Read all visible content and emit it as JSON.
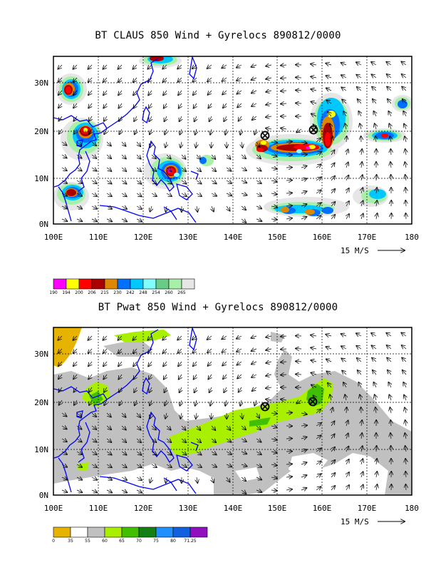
{
  "panels": [
    {
      "title": "BT CLAUS 850 Wind + Gyrelocs 890812/0000",
      "x_ticks": [
        "100E",
        "110E",
        "120E",
        "130E",
        "140E",
        "150E",
        "160E",
        "170E",
        "180"
      ],
      "y_ticks": [
        "0N",
        "10N",
        "20N",
        "30N"
      ],
      "vector_ref_label": "15 M/S",
      "colorbar_labels": [
        "190",
        "194",
        "200",
        "206",
        "215",
        "230",
        "242",
        "248",
        "254",
        "260",
        "265"
      ],
      "colorbar_colors": [
        "#ff00ff",
        "#ffff00",
        "#ff0000",
        "#aa0000",
        "#dd8800",
        "#0070ff",
        "#00c8ff",
        "#80ffff",
        "#66cc88",
        "#a8f0a8",
        "#e6e6e6"
      ]
    },
    {
      "title": "BT Pwat 850 Wind + Gyrelocs 890812/0000",
      "x_ticks": [
        "100E",
        "110E",
        "120E",
        "130E",
        "140E",
        "150E",
        "160E",
        "170E",
        "180"
      ],
      "y_ticks": [
        "0N",
        "10N",
        "20N",
        "30N"
      ],
      "vector_ref_label": "15 M/S",
      "colorbar_labels": [
        "0",
        "35",
        "55",
        "60",
        "65",
        "70",
        "75",
        "80",
        "71.25"
      ],
      "colorbar_colors": [
        "#e6b400",
        "#ffffff",
        "#c0c0c0",
        "#a8f000",
        "#40c000",
        "#138013",
        "#2090ff",
        "#1060e0",
        "#9010c0"
      ]
    }
  ],
  "gyre_locations": [
    {
      "lon": 147,
      "lat": 19.5
    },
    {
      "lon": 157.5,
      "lat": 20.5
    }
  ]
}
